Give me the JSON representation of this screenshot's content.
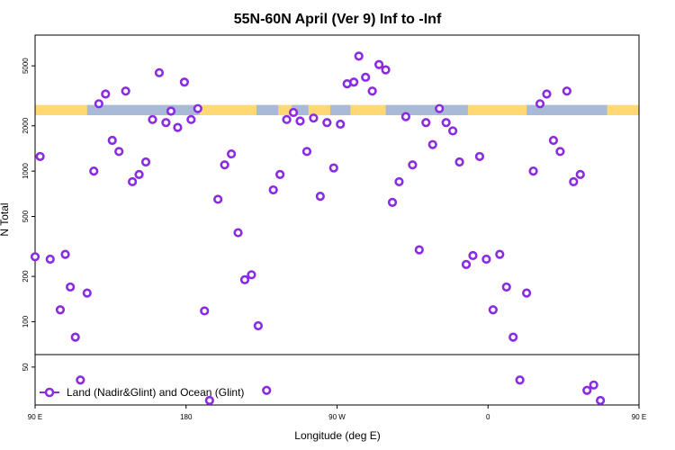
{
  "chart_data": {
    "type": "scatter",
    "title": "55N-60N April (Ver 9)   Inf to -Inf",
    "xlabel": "Longitude (deg E)",
    "ylabel": "N Total",
    "y_scale": "log",
    "xlim": [
      90,
      450
    ],
    "ylim": [
      28,
      8000
    ],
    "x_ticks": [
      {
        "value": 90,
        "label": "90 E"
      },
      {
        "value": 180,
        "label": "180"
      },
      {
        "value": 270,
        "label": "90 W"
      },
      {
        "value": 360,
        "label": "0"
      },
      {
        "value": 450,
        "label": "90 E"
      },
      {
        "value": 540,
        "label": "180"
      }
    ],
    "y_ticks": [
      {
        "value": 50,
        "label": "50"
      },
      {
        "value": 100,
        "label": "100"
      },
      {
        "value": 200,
        "label": "200"
      },
      {
        "value": 500,
        "label": "500"
      },
      {
        "value": 1000,
        "label": "1000"
      },
      {
        "value": 2000,
        "label": "2000"
      },
      {
        "value": 5000,
        "label": "5000"
      }
    ],
    "reference_line": 50,
    "land_ocean_band": {
      "y_low": 2350,
      "y_high": 2750,
      "ocean_color": "#a8bad6",
      "land_color": "#ffd876"
    },
    "legend": {
      "label": "Land (Nadir&Glint) and Ocean (Glint)",
      "position": "bottom-left"
    },
    "marker_color": "#8a2be2",
    "series": [
      {
        "name": "Land (Nadir&Glint) and Ocean (Glint)",
        "points": [
          [
            90,
            270
          ],
          [
            93,
            1250
          ],
          [
            99,
            260
          ],
          [
            105,
            120
          ],
          [
            108,
            280
          ],
          [
            111,
            170
          ],
          [
            114,
            79
          ],
          [
            117,
            41
          ],
          [
            121,
            155
          ],
          [
            125,
            1000
          ],
          [
            128,
            2800
          ],
          [
            132,
            3250
          ],
          [
            136,
            1600
          ],
          [
            140,
            1350
          ],
          [
            144,
            3400
          ],
          [
            148,
            850
          ],
          [
            152,
            950
          ],
          [
            156,
            1150
          ],
          [
            160,
            2200
          ],
          [
            164,
            4500
          ],
          [
            168,
            2100
          ],
          [
            171,
            2500
          ],
          [
            175,
            1950
          ],
          [
            179,
            3900
          ],
          [
            183,
            2200
          ],
          [
            187,
            2600
          ],
          [
            191,
            118
          ],
          [
            194,
            30
          ],
          [
            199,
            650
          ],
          [
            203,
            1100
          ],
          [
            207,
            1300
          ],
          [
            211,
            390
          ],
          [
            215,
            190
          ],
          [
            219,
            205
          ],
          [
            223,
            94
          ],
          [
            228,
            35
          ],
          [
            232,
            750
          ],
          [
            236,
            950
          ],
          [
            240,
            2200
          ],
          [
            244,
            2450
          ],
          [
            248,
            2150
          ],
          [
            252,
            1350
          ],
          [
            256,
            2250
          ],
          [
            260,
            680
          ],
          [
            264,
            2100
          ],
          [
            268,
            1050
          ],
          [
            272,
            2050
          ],
          [
            276,
            3800
          ],
          [
            280,
            3900
          ],
          [
            283,
            5800
          ],
          [
            287,
            4200
          ],
          [
            291,
            3400
          ],
          [
            295,
            5100
          ],
          [
            299,
            4700
          ],
          [
            303,
            620
          ],
          [
            307,
            850
          ],
          [
            311,
            2300
          ],
          [
            315,
            1100
          ],
          [
            319,
            300
          ],
          [
            323,
            2100
          ],
          [
            327,
            1500
          ],
          [
            331,
            2600
          ],
          [
            335,
            2100
          ],
          [
            339,
            1850
          ],
          [
            343,
            1150
          ],
          [
            347,
            240
          ],
          [
            351,
            275
          ],
          [
            355,
            1250
          ],
          [
            359,
            260
          ],
          [
            363,
            120
          ],
          [
            367,
            280
          ],
          [
            371,
            170
          ],
          [
            375,
            79
          ],
          [
            379,
            41
          ],
          [
            383,
            155
          ],
          [
            387,
            1000
          ],
          [
            391,
            2800
          ],
          [
            395,
            3250
          ],
          [
            399,
            1600
          ],
          [
            403,
            1350
          ],
          [
            407,
            3400
          ],
          [
            411,
            850
          ],
          [
            415,
            950
          ],
          [
            419,
            35
          ],
          [
            423,
            38
          ],
          [
            427,
            30
          ]
        ]
      }
    ]
  }
}
